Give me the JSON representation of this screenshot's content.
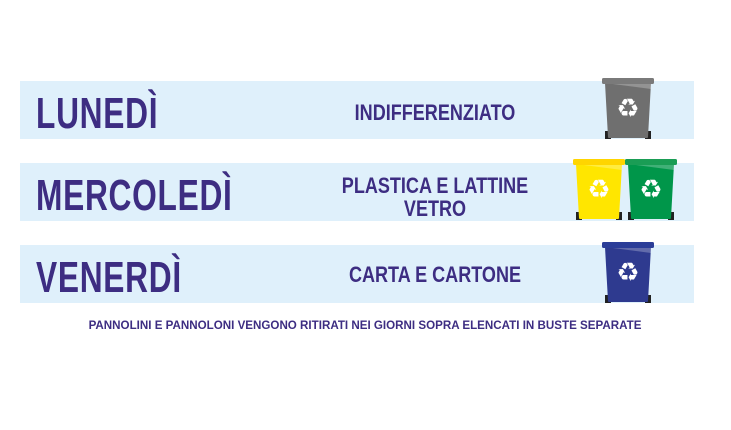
{
  "schedule": [
    {
      "day": "LUNEDÌ",
      "waste": [
        "INDIFFERENZIATO"
      ],
      "bins": [
        {
          "color": "#6f6f6f",
          "lid": "#7a7a7a",
          "icon": "recycle-icon"
        }
      ]
    },
    {
      "day": "MERCOLEDÌ",
      "waste": [
        "PLASTICA E LATTINE",
        "VETRO"
      ],
      "bins": [
        {
          "color": "#ffe600",
          "lid": "#ffd500",
          "icon": "recycle-icon"
        },
        {
          "color": "#00964a",
          "lid": "#1a9d55",
          "icon": "recycle-icon"
        }
      ]
    },
    {
      "day": "VENERDÌ",
      "waste": [
        "CARTA E CARTONE"
      ],
      "bins": [
        {
          "color": "#2e3a8f",
          "lid": "#2b3d98",
          "icon": "recycle-icon"
        }
      ]
    }
  ],
  "footer": "PANNOLINI E PANNOLONI VENGONO RITIRATI NEI GIORNI SOPRA ELENCATI IN BUSTE SEPARATE",
  "colors": {
    "text": "#3d2d82",
    "band": "#dff0fb"
  }
}
